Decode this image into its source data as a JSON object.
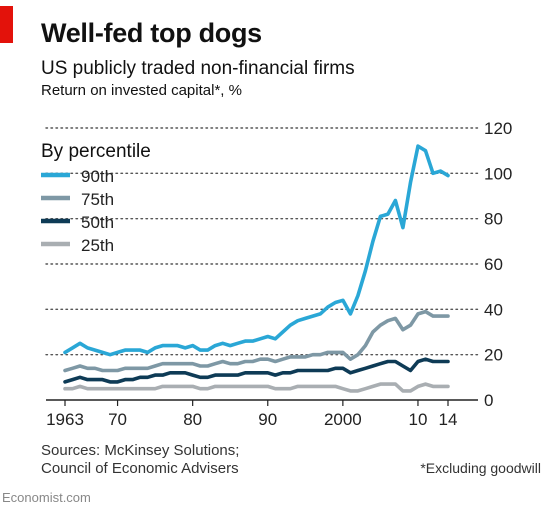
{
  "header": {
    "title": "Well-fed top dogs",
    "subtitle": "US publicly traded non-financial firms",
    "unit": "Return on invested capital*, %"
  },
  "footer": {
    "source_line1": "Sources: McKinsey Solutions;",
    "source_line2": "Council of Economic Advisers",
    "footnote": "*Excluding goodwill",
    "brand": "Economist.com"
  },
  "colors": {
    "accent": "#e3120b",
    "p90": "#2aa7d6",
    "p75": "#7e98a5",
    "p50": "#0e3b56",
    "p25": "#a9aeb2",
    "grid": "#555555"
  },
  "chart_data": {
    "type": "line",
    "legend_title": "By percentile",
    "legend_position": "top-left",
    "y_axis_side": "right",
    "ylim": [
      0,
      120
    ],
    "yticks": [
      0,
      20,
      40,
      60,
      80,
      100,
      120
    ],
    "xlim": [
      1963,
      2014
    ],
    "xtick_values": [
      1963,
      1970,
      1980,
      1990,
      2000,
      2010,
      2014
    ],
    "xtick_labels": [
      "1963",
      "70",
      "80",
      "90",
      "2000",
      "10",
      "14"
    ],
    "grid": "dotted horizontal",
    "x": [
      1963,
      1964,
      1965,
      1966,
      1967,
      1968,
      1969,
      1970,
      1971,
      1972,
      1973,
      1974,
      1975,
      1976,
      1977,
      1978,
      1979,
      1980,
      1981,
      1982,
      1983,
      1984,
      1985,
      1986,
      1987,
      1988,
      1989,
      1990,
      1991,
      1992,
      1993,
      1994,
      1995,
      1996,
      1997,
      1998,
      1999,
      2000,
      2001,
      2002,
      2003,
      2004,
      2005,
      2006,
      2007,
      2008,
      2009,
      2010,
      2011,
      2012,
      2013,
      2014
    ],
    "series": [
      {
        "name": "90th",
        "color_key": "p90",
        "values": [
          21,
          23,
          25,
          23,
          22,
          21,
          20,
          21,
          22,
          22,
          22,
          21,
          23,
          24,
          24,
          24,
          23,
          24,
          22,
          22,
          24,
          25,
          24,
          25,
          26,
          26,
          27,
          28,
          27,
          30,
          33,
          35,
          36,
          37,
          38,
          41,
          43,
          44,
          38,
          46,
          57,
          70,
          81,
          82,
          88,
          76,
          96,
          112,
          110,
          100,
          101,
          99
        ]
      },
      {
        "name": "75th",
        "color_key": "p75",
        "values": [
          13,
          14,
          15,
          14,
          14,
          13,
          13,
          13,
          14,
          14,
          14,
          14,
          15,
          16,
          16,
          16,
          16,
          16,
          15,
          15,
          16,
          17,
          16,
          16,
          17,
          17,
          18,
          18,
          17,
          18,
          19,
          19,
          19,
          20,
          20,
          21,
          21,
          21,
          18,
          20,
          24,
          30,
          33,
          35,
          36,
          31,
          33,
          38,
          39,
          37,
          37,
          37
        ]
      },
      {
        "name": "50th",
        "color_key": "p50",
        "values": [
          8,
          9,
          10,
          9,
          9,
          9,
          8,
          8,
          9,
          9,
          10,
          10,
          11,
          11,
          12,
          12,
          12,
          11,
          10,
          10,
          11,
          11,
          11,
          11,
          12,
          12,
          12,
          12,
          11,
          12,
          12,
          13,
          13,
          13,
          13,
          13,
          14,
          14,
          12,
          13,
          14,
          15,
          16,
          17,
          17,
          15,
          13,
          17,
          18,
          17,
          17,
          17
        ]
      },
      {
        "name": "25th",
        "color_key": "p25",
        "values": [
          5,
          5,
          6,
          5,
          5,
          5,
          5,
          5,
          5,
          5,
          5,
          5,
          5,
          6,
          6,
          6,
          6,
          6,
          5,
          5,
          6,
          6,
          6,
          6,
          6,
          6,
          6,
          6,
          5,
          5,
          5,
          6,
          6,
          6,
          6,
          6,
          6,
          5,
          4,
          4,
          5,
          6,
          7,
          7,
          7,
          4,
          4,
          6,
          7,
          6,
          6,
          6
        ]
      }
    ]
  }
}
